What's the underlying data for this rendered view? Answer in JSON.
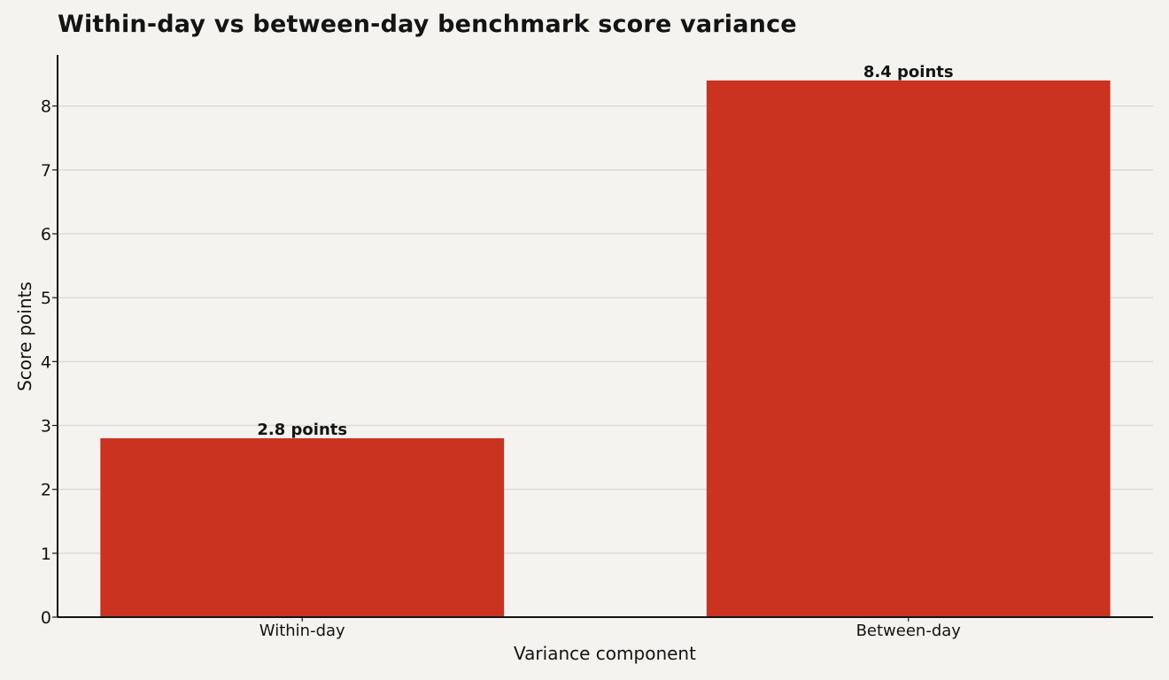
{
  "chart_data": {
    "type": "bar",
    "title": "Within-day vs between-day benchmark score variance",
    "xlabel": "Variance component",
    "ylabel": "Score points",
    "categories": [
      "Within-day",
      "Between-day"
    ],
    "values": [
      2.8,
      8.4
    ],
    "data_labels": [
      "2.8 points",
      "8.4 points"
    ],
    "ylim": [
      0,
      8.8
    ],
    "yticks": [
      0,
      1,
      2,
      3,
      4,
      5,
      6,
      7,
      8
    ],
    "grid": true,
    "colors": {
      "bar": "#c93320",
      "grid": "#dcdbd6",
      "axis": "#141414",
      "background": "#f4f3ef"
    }
  }
}
